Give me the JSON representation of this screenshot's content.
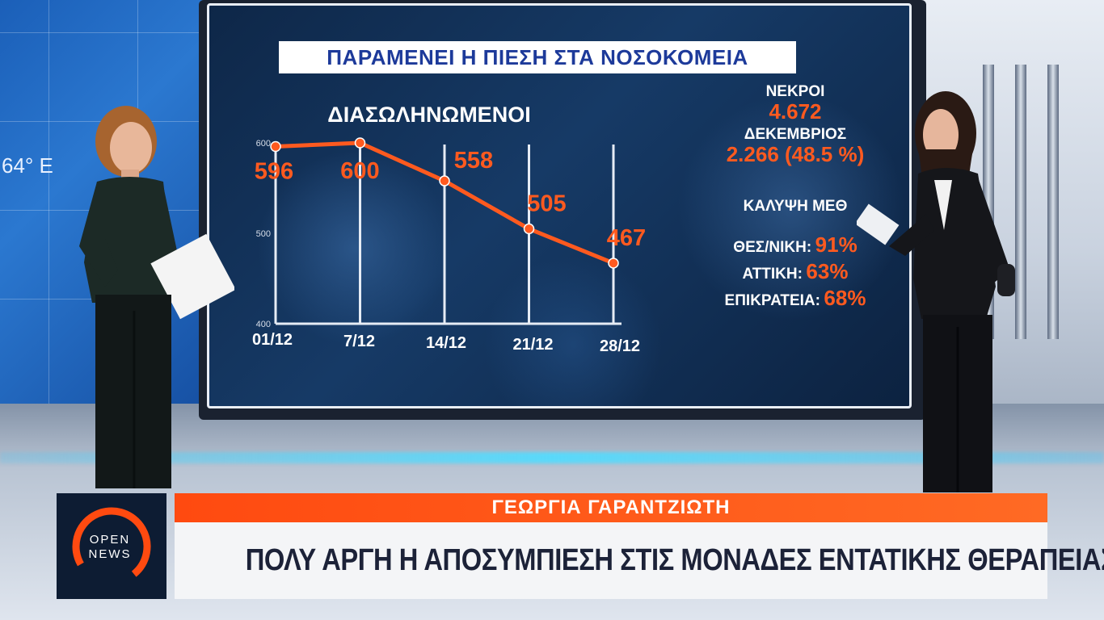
{
  "background": {
    "wall_degree_text": "64° E"
  },
  "screen": {
    "title": "ΠΑΡΑΜΕΝΕΙ Η ΠΙΕΣΗ ΣΤΑ ΝΟΣΟΚΟΜΕΙΑ",
    "stats": {
      "deaths_label": "ΝΕΚΡΟΙ",
      "deaths_value": "4.672",
      "december_label": "ΔΕΚΕΜΒΡΙΟΣ",
      "december_value": "2.266 (48.5 %)",
      "icu_coverage_label": "ΚΑΛΥΨΗ ΜΕΘ",
      "regions": [
        {
          "label": "ΘΕΣ/ΝΙΚΗ:",
          "value": "91%"
        },
        {
          "label": "ΑΤΤΙΚΗ:",
          "value": "63%"
        },
        {
          "label": "ΕΠΙΚΡΑΤΕΙΑ:",
          "value": "68%"
        }
      ]
    }
  },
  "chart_data": {
    "type": "line",
    "title": "ΔΙΑΣΩΛΗΝΩΜΕΝΟΙ",
    "categories": [
      "01/12",
      "7/12",
      "14/12",
      "21/12",
      "28/12"
    ],
    "series": [
      {
        "name": "",
        "values": [
          596,
          600,
          558,
          505,
          467
        ]
      }
    ],
    "data_labels": [
      "596",
      "600",
      "558",
      "505",
      "467"
    ],
    "yticks": [
      400,
      500,
      600
    ],
    "ylim": [
      400,
      600
    ],
    "grid": true,
    "colors": {
      "line": "#ff5a1f",
      "grid": "#e6ecf5",
      "labels": "#ff5a1f"
    }
  },
  "lower_third": {
    "logo_top": "OPEN",
    "logo_bottom": "NEWS",
    "name": "ΓΕΩΡΓΙΑ ΓΑΡΑΝΤΖΙΩΤΗ",
    "headline": "ΠΟΛΥ ΑΡΓΗ Η ΑΠΟΣΥΜΠΙΕΣΗ ΣΤΙΣ ΜΟΝΑΔΕΣ ΕΝΤΑΤΙΚΗΣ ΘΕΡΑΠΕΙΑΣ",
    "accent_color": "#ff4a10"
  }
}
